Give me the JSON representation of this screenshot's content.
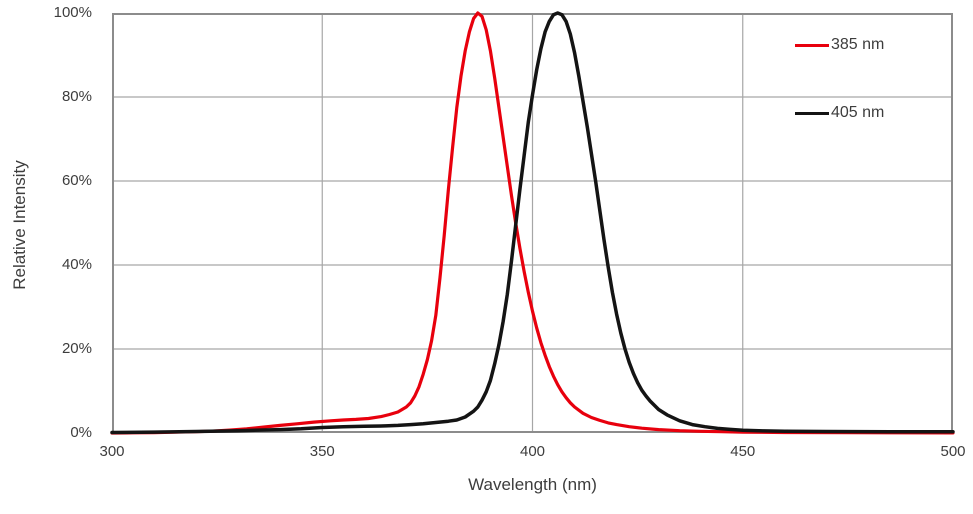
{
  "accent_colors": {
    "red_curve": "#e8000d",
    "black_curve": "#141414",
    "gridline": "#a6a6a6",
    "frame": "#8c8c8c",
    "text": "#3d3d3d"
  },
  "legend": {
    "items": [
      {
        "label": "385 nm",
        "color": "#e8000d"
      },
      {
        "label": "405 nm",
        "color": "#141414"
      }
    ]
  },
  "chart_data": {
    "type": "line",
    "title": "",
    "xlabel": "Wavelength (nm)",
    "ylabel": "Relative Intensity",
    "xlim": [
      300,
      500
    ],
    "ylim": [
      0,
      100
    ],
    "grid": true,
    "legend_position": "top-right-inside",
    "x_ticks": [
      300,
      350,
      400,
      450,
      500
    ],
    "x_tick_labels": [
      "300",
      "350",
      "400",
      "450",
      "500"
    ],
    "y_ticks": [
      0,
      20,
      40,
      60,
      80,
      100
    ],
    "y_tick_labels": [
      "0%",
      "20%",
      "40%",
      "60%",
      "80%",
      "100%"
    ],
    "series": [
      {
        "name": "385 nm",
        "color": "#e8000d",
        "peak_nm": 387,
        "points": [
          [
            300,
            0
          ],
          [
            305,
            0.05
          ],
          [
            310,
            0.1
          ],
          [
            315,
            0.2
          ],
          [
            320,
            0.3
          ],
          [
            324,
            0.45
          ],
          [
            328,
            0.7
          ],
          [
            332,
            1.0
          ],
          [
            336,
            1.4
          ],
          [
            340,
            1.8
          ],
          [
            344,
            2.2
          ],
          [
            348,
            2.6
          ],
          [
            352,
            2.9
          ],
          [
            355,
            3.1
          ],
          [
            358,
            3.25
          ],
          [
            361,
            3.45
          ],
          [
            364,
            3.9
          ],
          [
            366,
            4.4
          ],
          [
            368,
            5.0
          ],
          [
            370,
            6.2
          ],
          [
            371,
            7.2
          ],
          [
            372,
            8.8
          ],
          [
            373,
            11
          ],
          [
            374,
            14
          ],
          [
            375,
            17.5
          ],
          [
            376,
            22
          ],
          [
            377,
            28
          ],
          [
            378,
            37
          ],
          [
            379,
            47
          ],
          [
            380,
            58
          ],
          [
            381,
            68
          ],
          [
            382,
            77.5
          ],
          [
            383,
            85
          ],
          [
            384,
            91
          ],
          [
            385,
            95.5
          ],
          [
            386,
            98.7
          ],
          [
            387,
            100
          ],
          [
            388,
            99.2
          ],
          [
            389,
            96
          ],
          [
            390,
            91
          ],
          [
            391,
            84.5
          ],
          [
            392,
            77.5
          ],
          [
            393,
            70.5
          ],
          [
            394,
            63.5
          ],
          [
            395,
            56.5
          ],
          [
            396,
            50
          ],
          [
            397,
            44
          ],
          [
            398,
            38.5
          ],
          [
            399,
            33.5
          ],
          [
            400,
            29
          ],
          [
            401,
            25
          ],
          [
            402,
            21.5
          ],
          [
            403,
            18.5
          ],
          [
            404,
            15.8
          ],
          [
            405,
            13.5
          ],
          [
            406,
            11.5
          ],
          [
            407,
            9.8
          ],
          [
            408,
            8.4
          ],
          [
            409,
            7.2
          ],
          [
            410,
            6.2
          ],
          [
            412,
            4.7
          ],
          [
            414,
            3.7
          ],
          [
            416,
            3.0
          ],
          [
            418,
            2.4
          ],
          [
            420,
            2.0
          ],
          [
            423,
            1.5
          ],
          [
            426,
            1.15
          ],
          [
            430,
            0.8
          ],
          [
            435,
            0.55
          ],
          [
            440,
            0.4
          ],
          [
            445,
            0.3
          ],
          [
            450,
            0.22
          ],
          [
            460,
            0.12
          ],
          [
            475,
            0.06
          ],
          [
            500,
            0.03
          ]
        ]
      },
      {
        "name": "405 nm",
        "color": "#141414",
        "peak_nm": 406,
        "points": [
          [
            300,
            0.12
          ],
          [
            310,
            0.22
          ],
          [
            320,
            0.35
          ],
          [
            330,
            0.55
          ],
          [
            340,
            0.8
          ],
          [
            345,
            1.0
          ],
          [
            350,
            1.3
          ],
          [
            355,
            1.5
          ],
          [
            360,
            1.6
          ],
          [
            365,
            1.7
          ],
          [
            368,
            1.8
          ],
          [
            371,
            2.0
          ],
          [
            374,
            2.2
          ],
          [
            377,
            2.5
          ],
          [
            380,
            2.8
          ],
          [
            382,
            3.1
          ],
          [
            384,
            3.8
          ],
          [
            386,
            5.2
          ],
          [
            387,
            6.2
          ],
          [
            388,
            7.8
          ],
          [
            389,
            9.8
          ],
          [
            390,
            12.5
          ],
          [
            391,
            16.5
          ],
          [
            392,
            21
          ],
          [
            393,
            26.5
          ],
          [
            394,
            33
          ],
          [
            395,
            41
          ],
          [
            396,
            49.5
          ],
          [
            397,
            58
          ],
          [
            398,
            66
          ],
          [
            399,
            74
          ],
          [
            400,
            80.5
          ],
          [
            401,
            86.5
          ],
          [
            402,
            91.5
          ],
          [
            403,
            95.5
          ],
          [
            404,
            98
          ],
          [
            405,
            99.6
          ],
          [
            406,
            100
          ],
          [
            407,
            99.6
          ],
          [
            408,
            98
          ],
          [
            409,
            95
          ],
          [
            410,
            90.5
          ],
          [
            411,
            85
          ],
          [
            412,
            79
          ],
          [
            413,
            73
          ],
          [
            414,
            66.5
          ],
          [
            415,
            60
          ],
          [
            416,
            53
          ],
          [
            417,
            46
          ],
          [
            418,
            39.5
          ],
          [
            419,
            33.5
          ],
          [
            420,
            28.3
          ],
          [
            421,
            23.8
          ],
          [
            422,
            20
          ],
          [
            423,
            16.8
          ],
          [
            424,
            14.2
          ],
          [
            425,
            12
          ],
          [
            426,
            10.2
          ],
          [
            427,
            8.8
          ],
          [
            428,
            7.6
          ],
          [
            430,
            5.6
          ],
          [
            432,
            4.3
          ],
          [
            435,
            2.9
          ],
          [
            438,
            2.0
          ],
          [
            441,
            1.5
          ],
          [
            444,
            1.1
          ],
          [
            447,
            0.85
          ],
          [
            450,
            0.65
          ],
          [
            455,
            0.5
          ],
          [
            460,
            0.42
          ],
          [
            470,
            0.36
          ],
          [
            485,
            0.32
          ],
          [
            500,
            0.3
          ]
        ]
      }
    ]
  }
}
